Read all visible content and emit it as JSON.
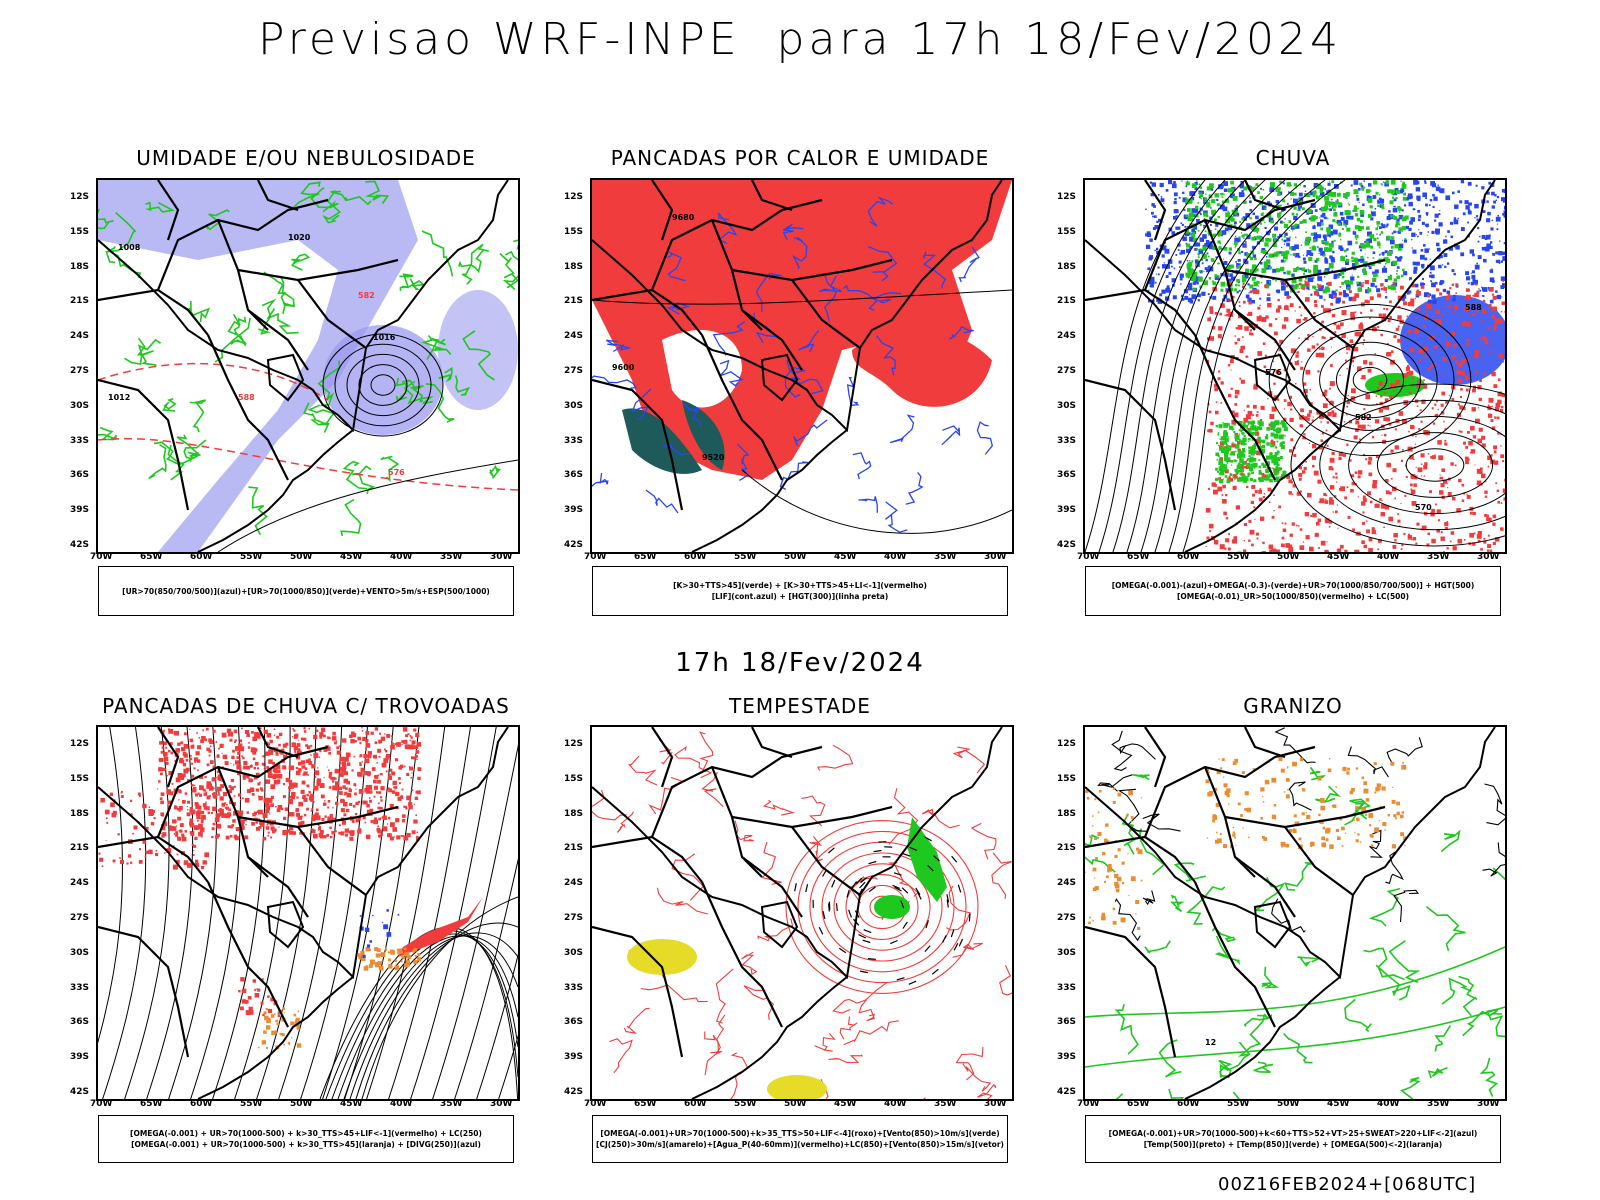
{
  "main_title": "Previsao WRF-INPE  para 17h 18/Fev/2024",
  "mid_title": "17h 18/Fev/2024",
  "footer": "00Z16FEB2024+[068UTC]",
  "y_ticks": [
    "12S",
    "15S",
    "18S",
    "21S",
    "24S",
    "27S",
    "30S",
    "33S",
    "36S",
    "39S",
    "42S"
  ],
  "x_ticks": [
    "70W",
    "65W",
    "60W",
    "55W",
    "50W",
    "45W",
    "40W",
    "35W",
    "30W"
  ],
  "panels": [
    {
      "title": "UMIDADE E/OU NEBULOSIDADE",
      "legend": [
        "[UR>70(850/700/500)](azul)+[UR>70(1000/850)](verde)+VENTO>5m/s+ESP(500/1000)"
      ],
      "labels": [
        "1008",
        "1012",
        "1016",
        "1020",
        "576",
        "582",
        "588"
      ]
    },
    {
      "title": "PANCADAS POR CALOR E UMIDADE",
      "legend": [
        "[K>30+TTS>45](verde) + [K>30+TTS>45+LI<-1](vermelho)",
        "[LIF](cont.azul) + [HGT(300)](linha preta)"
      ],
      "labels": [
        "9680",
        "9600",
        "9520"
      ]
    },
    {
      "title": "CHUVA",
      "legend": [
        "[OMEGA(-0.001)-(azul)+OMEGA(-0.3)-(verde)+UR>70(1000/850/700/500)] + HGT(500)",
        "[OMEGA(-0.01)_UR>50(1000/850)(vermelho) + LC(500)"
      ],
      "labels": [
        "588",
        "576",
        "582",
        "570"
      ]
    },
    {
      "title": "PANCADAS DE CHUVA C/ TROVOADAS",
      "legend": [
        "[OMEGA(-0.001) + UR>70(1000-500) + k>30_TTS>45+LIF<-1](vermelho) + LC(250)",
        "[OMEGA(-0.001) + UR>70(1000-500) + k>30_TTS>45](laranja) + [DIVG(250)](azul)"
      ],
      "labels": []
    },
    {
      "title": "TEMPESTADE",
      "legend": [
        "[OMEGA(-0.001)+UR>70(1000-500)+k>35_TTS>50+LIF<-4](roxo)+[Vento(850)>10m/s](verde)",
        "[CJ(250)>30m/s](amarelo)+[Agua_P(40-60mm)](vermelho)+LC(850)+[Vento(850)>15m/s](vetor)"
      ],
      "labels": []
    },
    {
      "title": "GRANIZO",
      "legend": [
        "[OMEGA(-0.001)+UR>70(1000-500)+k<60+TTS>52+VT>25+SWEAT>220+LIF<-2](azul)",
        "[Temp(500)](preto) + [Temp(850)](verde) + [OMEGA(500)<-2](laranja)"
      ],
      "labels": [
        "12"
      ]
    }
  ],
  "colors": {
    "blue_fill": "#9b9bf0",
    "green_line": "#1ec81e",
    "red": "#f03c3c",
    "teal": "#1e5a5a",
    "yellow": "#e6dc28",
    "orange": "#eb8c32",
    "blue_line": "#2846f0"
  }
}
